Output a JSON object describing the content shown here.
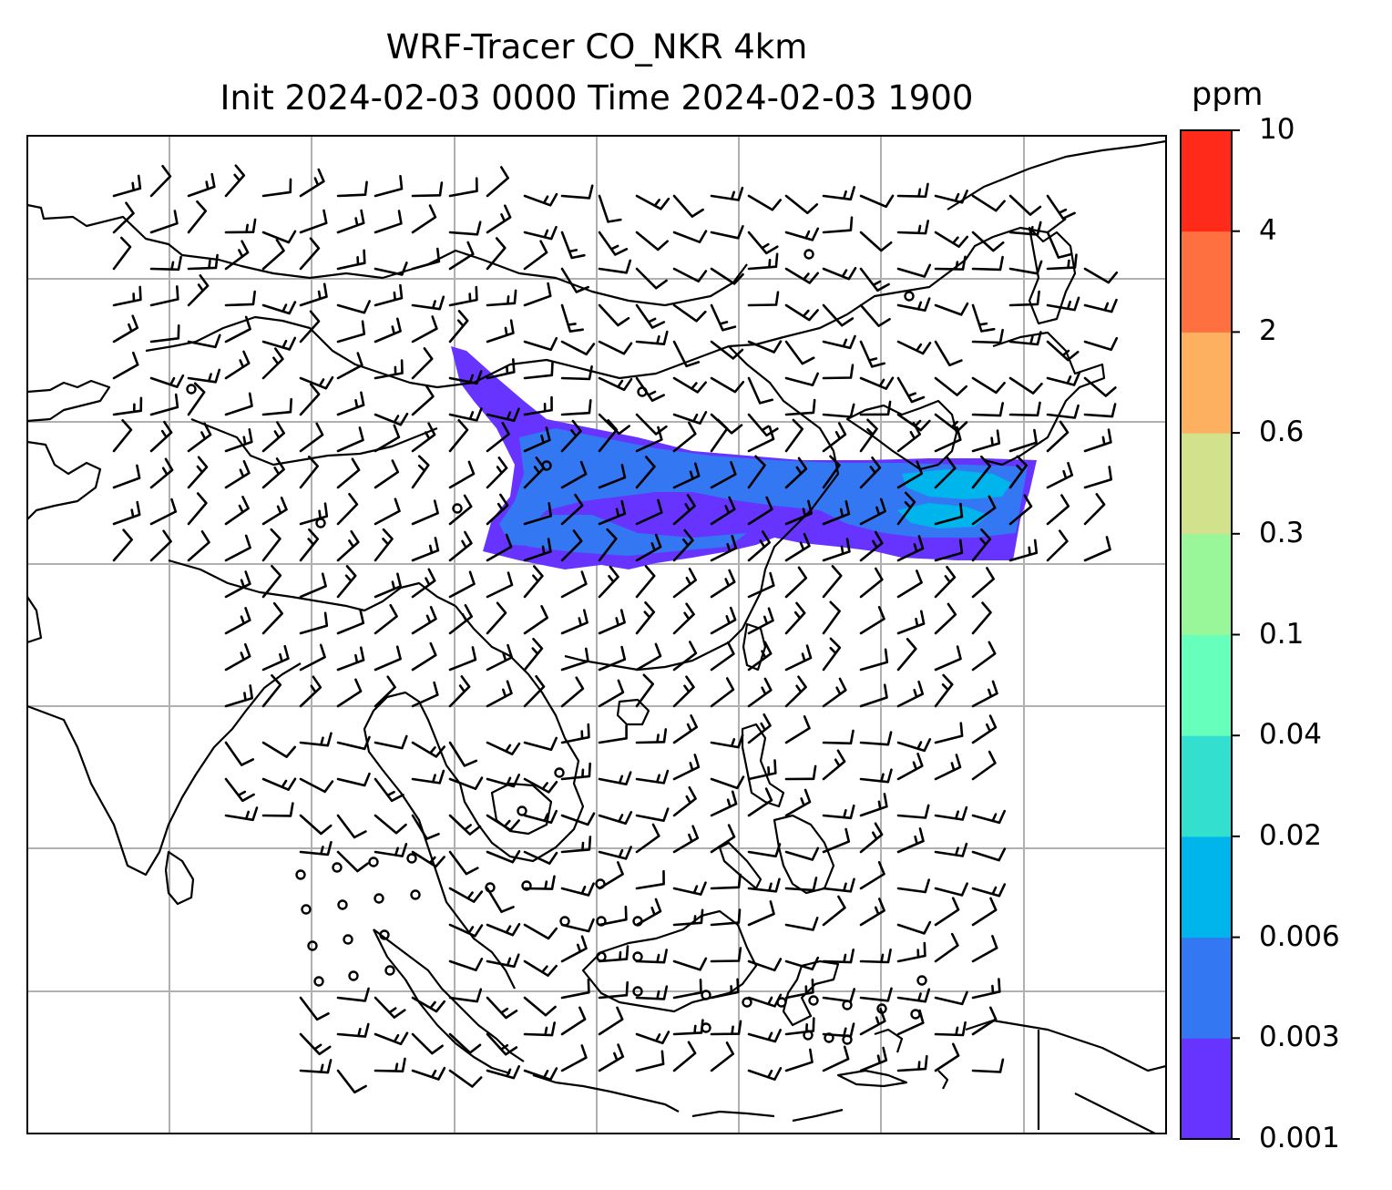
{
  "title_line1": "WRF-Tracer CO_NKR 4km",
  "title_line2": "Init 2024-02-03 0000 Time 2024-02-03 1900",
  "colorbar": {
    "unit": "ppm",
    "levels": [
      "0.001",
      "0.003",
      "0.006",
      "0.02",
      "0.04",
      "0.1",
      "0.3",
      "0.6",
      "2",
      "4",
      "10"
    ],
    "colors": [
      "#6633ff",
      "#3377f2",
      "#00b4ec",
      "#33e0d0",
      "#66ffbb",
      "#99f79a",
      "#d1e18c",
      "#fcb060",
      "#ff7040",
      "#ff2a1a"
    ]
  },
  "map": {
    "grid": "on",
    "coastline_color": "#000000",
    "plume_colors": [
      "#6633ff",
      "#3377f2",
      "#00b4ec"
    ]
  }
}
